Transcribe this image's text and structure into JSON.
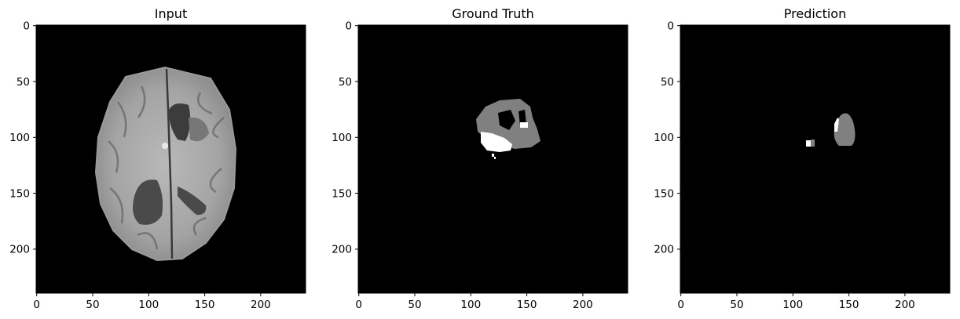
{
  "panels": [
    {
      "title": "Input",
      "xticks": [
        "0",
        "50",
        "100",
        "150",
        "200"
      ],
      "yticks": [
        "0",
        "50",
        "100",
        "150",
        "200"
      ],
      "image": "brain MRI axial slice, grayscale"
    },
    {
      "title": "Ground Truth",
      "xticks": [
        "0",
        "50",
        "100",
        "150",
        "200"
      ],
      "yticks": [
        "0",
        "50",
        "100",
        "150",
        "200"
      ],
      "image": "tumor segmentation mask (gray and white regions on black)"
    },
    {
      "title": "Prediction",
      "xticks": [
        "0",
        "50",
        "100",
        "150",
        "200"
      ],
      "yticks": [
        "0",
        "50",
        "100",
        "150",
        "200"
      ],
      "image": "predicted segmentation mask (gray and white regions on black)"
    }
  ],
  "axis": {
    "xlim": [
      0,
      240
    ],
    "ylim": [
      240,
      0
    ],
    "tick_values": [
      0,
      50,
      100,
      150,
      200
    ]
  },
  "colors": {
    "background": "#000000",
    "mask_edema": "#808080",
    "mask_core": "#ffffff"
  }
}
